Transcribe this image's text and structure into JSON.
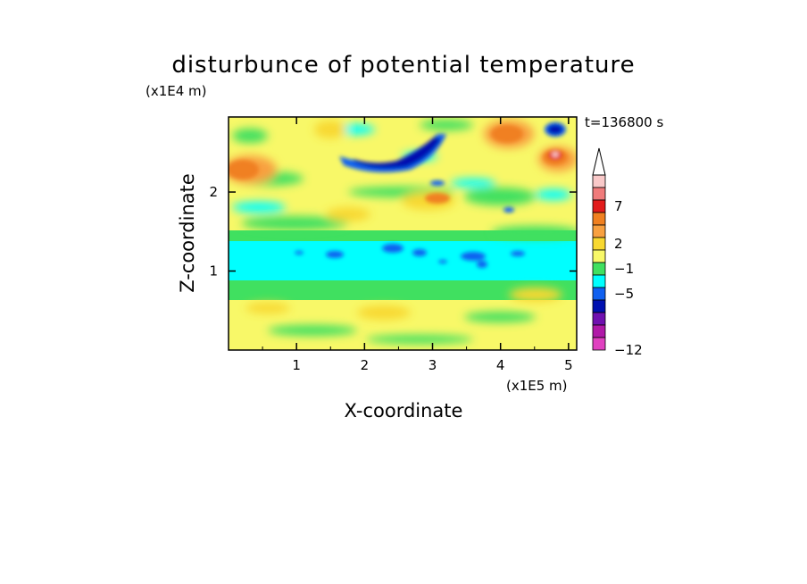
{
  "chart_data": {
    "type": "heatmap",
    "title": "disturbunce of potential temperature",
    "time_label": "t=136800 s",
    "xlabel": "X-coordinate",
    "ylabel": "Z-coordinate",
    "x_unit": "(x1E5 m)",
    "y_unit": "(x1E4 m)",
    "xlim": [
      0,
      5.12
    ],
    "ylim": [
      0,
      2.95
    ],
    "x_ticks": [
      "1",
      "2",
      "3",
      "4",
      "5"
    ],
    "y_ticks": [
      "1",
      "2"
    ],
    "colorbar": {
      "labels": [
        "7",
        "2",
        "−1",
        "−5",
        "−12"
      ],
      "colors": [
        "#f9c9c9",
        "#f07b7b",
        "#e21b1b",
        "#f08020",
        "#f8a040",
        "#f8d830",
        "#f8f868",
        "#40e060",
        "#00ffff",
        "#1060f0",
        "#0010b0",
        "#7010b0",
        "#b018a8",
        "#e040c0"
      ],
      "extend_max": true
    }
  }
}
